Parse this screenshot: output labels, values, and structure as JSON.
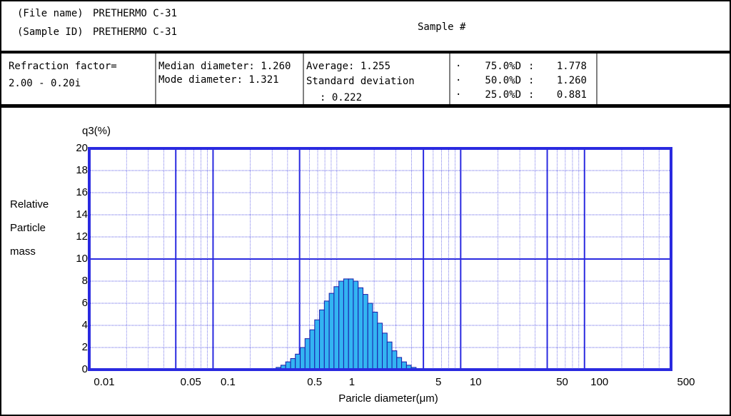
{
  "header": {
    "file_name_label": "(File name)",
    "file_name": "PRETHERMO C-31",
    "sample_id_label": "(Sample ID)",
    "sample_id": "PRETHERMO C-31",
    "sample_number": "Sample #"
  },
  "stats": {
    "refraction": [
      "Refraction factor=",
      "2.00 - 0.20i"
    ],
    "diameters": [
      "Median diameter: 1.260",
      "Mode diameter: 1.321"
    ],
    "average": [
      "Average: 1.255",
      "Standard deviation",
      ": 0.222"
    ],
    "percentiles": [
      {
        "bullet": "·",
        "label": "75.0%D",
        "sep": ":",
        "value": "1.778"
      },
      {
        "bullet": "·",
        "label": "50.0%D",
        "sep": ":",
        "value": "1.260"
      },
      {
        "bullet": "·",
        "label": "25.0%D",
        "sep": ":",
        "value": "0.881"
      }
    ]
  },
  "chart_data": {
    "type": "histogram",
    "ylabel": [
      "Relative",
      "Particle",
      "mass"
    ],
    "yunit": "q3(%)",
    "xlabel": "Paricle diameter(μm)",
    "xscale": "log",
    "xlim": [
      0.01,
      500
    ],
    "xticks": [
      0.01,
      0.05,
      0.1,
      0.5,
      1,
      5,
      10,
      50,
      100,
      500
    ],
    "x_major_grid": [
      0.05,
      0.1,
      0.5,
      5,
      10,
      50,
      100
    ],
    "ylim": [
      0,
      20
    ],
    "yticks": [
      0,
      2,
      4,
      6,
      8,
      10,
      12,
      14,
      16,
      18,
      20
    ],
    "y_major_grid": [
      10
    ],
    "grid": true,
    "color": "#33b4f2",
    "edge_color": "#1a1aa8",
    "frame_color": "#2a2ae0",
    "bins": [
      0.295,
      0.323,
      0.353,
      0.386,
      0.423,
      0.462,
      0.506,
      0.553,
      0.605,
      0.662,
      0.724,
      0.792,
      0.867,
      0.948,
      1.038,
      1.135,
      1.242,
      1.358,
      1.486,
      1.626,
      1.778,
      1.945,
      2.128,
      2.328,
      2.547,
      2.786,
      3.048,
      3.334,
      3.648,
      3.99,
      4.365,
      4.775
    ],
    "values": [
      0.1,
      0.2,
      0.4,
      0.7,
      1.0,
      1.4,
      2.0,
      2.8,
      3.6,
      4.5,
      5.4,
      6.2,
      6.9,
      7.5,
      8.0,
      8.2,
      8.2,
      8.0,
      7.4,
      6.8,
      6.0,
      5.2,
      4.2,
      3.3,
      2.5,
      1.7,
      1.1,
      0.7,
      0.4,
      0.2,
      0.1
    ]
  }
}
